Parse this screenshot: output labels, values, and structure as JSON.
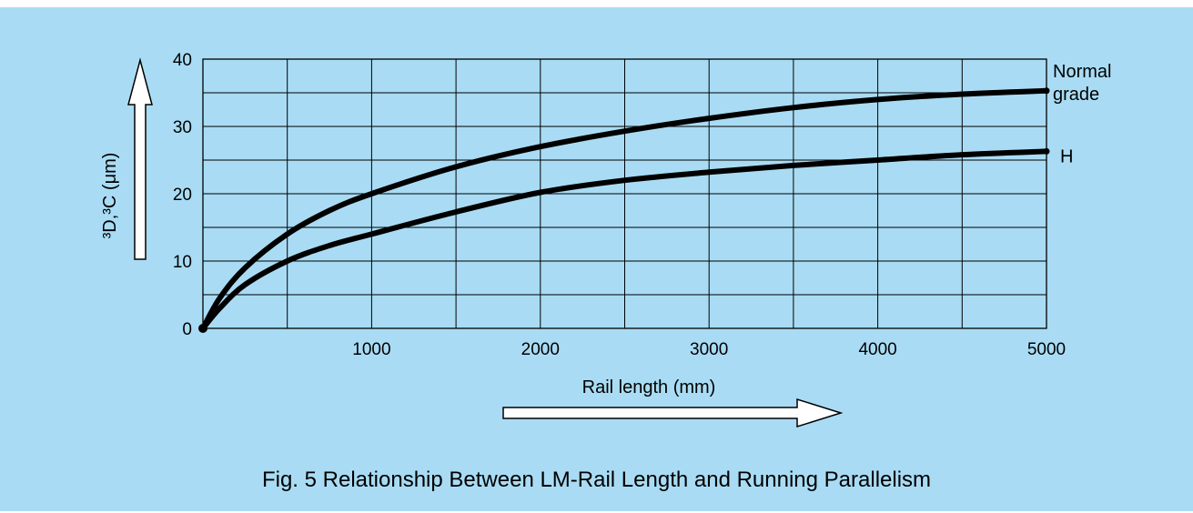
{
  "caption": "Fig. 5 Relationship Between LM-Rail Length and Running Parallelism",
  "chart_data": {
    "type": "line",
    "xlabel": "Rail length (mm)",
    "ylabel": "³D,³C (μm)",
    "xlim": [
      0,
      5000
    ],
    "ylim": [
      0,
      40
    ],
    "x_ticks": [
      "1000",
      "2000",
      "3000",
      "4000",
      "5000"
    ],
    "y_ticks": [
      "0",
      "10",
      "20",
      "30",
      "40"
    ],
    "grid": true,
    "series": [
      {
        "name": "Normal grade",
        "label_lines": [
          "Normal",
          "grade"
        ],
        "x": [
          0,
          100,
          250,
          500,
          750,
          1000,
          1500,
          2000,
          2500,
          3000,
          3500,
          4000,
          4500,
          5000
        ],
        "y": [
          0,
          4.5,
          9,
          14,
          17.5,
          20,
          24,
          27,
          29.3,
          31.2,
          32.8,
          34,
          34.8,
          35.3
        ]
      },
      {
        "name": "H",
        "label_lines": [
          "H"
        ],
        "x": [
          0,
          100,
          250,
          500,
          750,
          1000,
          1500,
          2000,
          2500,
          3000,
          3500,
          4000,
          4500,
          5000
        ],
        "y": [
          0,
          3,
          6.5,
          10,
          12.3,
          14,
          17.3,
          20.2,
          22,
          23.2,
          24.2,
          25,
          25.8,
          26.3
        ]
      }
    ],
    "colors": {
      "background": "#a9dcf4",
      "line": "#000000",
      "grid": "#000000",
      "arrow_fill": "#ffffff"
    }
  }
}
